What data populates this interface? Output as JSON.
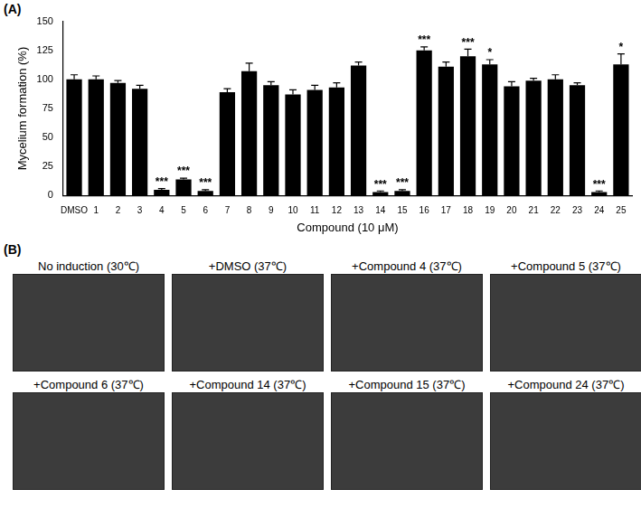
{
  "chart_data": {
    "type": "bar",
    "panel_label": "(A)",
    "x_label": "Compound (10 μM)",
    "y_label": "Mycelium formation (%)",
    "categories": [
      "DMSO",
      "1",
      "2",
      "3",
      "4",
      "5",
      "6",
      "7",
      "8",
      "9",
      "10",
      "11",
      "12",
      "13",
      "14",
      "15",
      "16",
      "17",
      "18",
      "19",
      "20",
      "21",
      "22",
      "23",
      "24",
      "25"
    ],
    "values": [
      100,
      100,
      97,
      92,
      5,
      14,
      4,
      89,
      107,
      95,
      87,
      91,
      93,
      112,
      3,
      4,
      125,
      111,
      120,
      113,
      94,
      99,
      100,
      95,
      3,
      113
    ],
    "errors": [
      4,
      3,
      2,
      3,
      1,
      1,
      1,
      3,
      7,
      3,
      4,
      4,
      4,
      3,
      1,
      1,
      3,
      4,
      6,
      4,
      4,
      2,
      4,
      2,
      1,
      9
    ],
    "significance": [
      null,
      null,
      null,
      null,
      "***",
      "***",
      "***",
      null,
      null,
      null,
      null,
      null,
      null,
      null,
      "***",
      "***",
      "***",
      null,
      "***",
      "*",
      null,
      null,
      null,
      null,
      "***",
      "*"
    ],
    "color": "#000000",
    "ylim": [
      0,
      150
    ],
    "yticks": [
      0,
      25,
      50,
      75,
      100,
      125,
      150
    ],
    "grid": false
  },
  "panel_b": {
    "label": "(B)",
    "images": [
      {
        "caption": "No induction (30℃)"
      },
      {
        "caption": "+DMSO (37℃)"
      },
      {
        "caption": "+Compound 4 (37℃)"
      },
      {
        "caption": "+Compound 5 (37℃)"
      },
      {
        "caption": "+Compound 6 (37℃)"
      },
      {
        "caption": "+Compound 14 (37℃)"
      },
      {
        "caption": "+Compound 15 (37℃)"
      },
      {
        "caption": "+Compound 24 (37℃)"
      }
    ]
  }
}
